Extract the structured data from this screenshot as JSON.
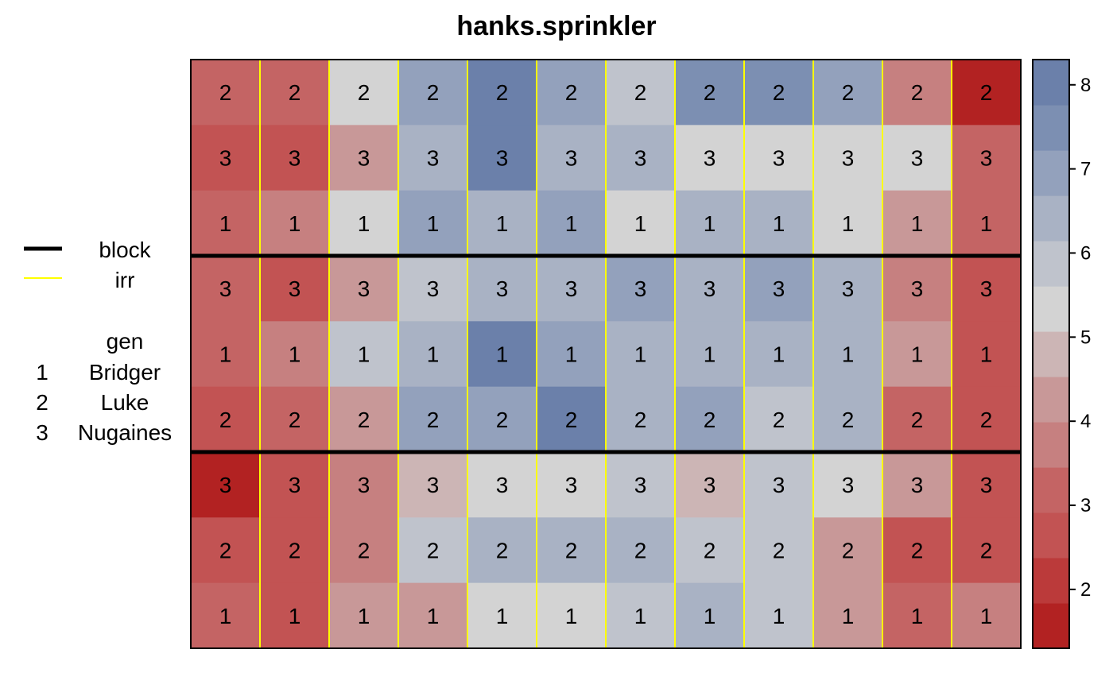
{
  "chart_data": {
    "type": "heatmap",
    "title": "hanks.sprinkler",
    "rows": 9,
    "cols": 12,
    "gen_labels": [
      [
        2,
        2,
        2,
        2,
        2,
        2,
        2,
        2,
        2,
        2,
        2,
        2
      ],
      [
        3,
        3,
        3,
        3,
        3,
        3,
        3,
        3,
        3,
        3,
        3,
        3
      ],
      [
        1,
        1,
        1,
        1,
        1,
        1,
        1,
        1,
        1,
        1,
        1,
        1
      ],
      [
        3,
        3,
        3,
        3,
        3,
        3,
        3,
        3,
        3,
        3,
        3,
        3
      ],
      [
        1,
        1,
        1,
        1,
        1,
        1,
        1,
        1,
        1,
        1,
        1,
        1
      ],
      [
        2,
        2,
        2,
        2,
        2,
        2,
        2,
        2,
        2,
        2,
        2,
        2
      ],
      [
        3,
        3,
        3,
        3,
        3,
        3,
        3,
        3,
        3,
        3,
        3,
        3
      ],
      [
        2,
        2,
        2,
        2,
        2,
        2,
        2,
        2,
        2,
        2,
        2,
        2
      ],
      [
        1,
        1,
        1,
        1,
        1,
        1,
        1,
        1,
        1,
        1,
        1,
        1
      ]
    ],
    "values": [
      [
        3.2,
        3.1,
        5.6,
        7.1,
        7.9,
        6.8,
        6.1,
        7.3,
        7.3,
        6.8,
        3.8,
        1.6
      ],
      [
        2.6,
        2.4,
        4.2,
        6.2,
        7.8,
        6.5,
        6.3,
        5.2,
        5.2,
        5.3,
        5.2,
        3.0
      ],
      [
        3.0,
        3.5,
        5.3,
        6.8,
        6.3,
        7.2,
        5.3,
        6.3,
        6.3,
        5.3,
        4.2,
        3.4
      ],
      [
        3.3,
        2.5,
        4.2,
        5.8,
        6.3,
        6.3,
        6.8,
        6.4,
        6.9,
        6.3,
        3.8,
        2.6
      ],
      [
        3.2,
        3.6,
        5.8,
        6.3,
        7.9,
        6.7,
        6.2,
        6.3,
        6.3,
        6.2,
        4.4,
        2.9
      ],
      [
        2.6,
        3.0,
        4.3,
        6.8,
        6.8,
        7.9,
        6.2,
        7.2,
        5.9,
        6.3,
        3.3,
        2.5
      ],
      [
        1.7,
        2.5,
        3.8,
        4.7,
        5.3,
        5.3,
        5.9,
        4.6,
        5.9,
        5.3,
        4.3,
        2.6
      ],
      [
        2.4,
        2.4,
        3.7,
        5.8,
        6.4,
        6.3,
        6.3,
        5.8,
        5.8,
        4.1,
        2.6,
        2.4
      ],
      [
        3.2,
        2.9,
        4.3,
        4.5,
        5.3,
        5.3,
        5.8,
        6.5,
        5.8,
        4.2,
        3.3,
        3.5
      ]
    ],
    "colorbar": {
      "min": 1.3,
      "max": 8.3,
      "ticks": [
        2,
        3,
        4,
        5,
        6,
        7,
        8
      ],
      "bands": [
        "#b22222",
        "#bb3a3a",
        "#c25353",
        "#c46464",
        "#c68080",
        "#c89898",
        "#ccb5b5",
        "#d3d3d3",
        "#bfc3cc",
        "#a9b2c4",
        "#93a1bc",
        "#7c8fb2",
        "#6b80aa"
      ]
    },
    "block_boundaries_after_row": [
      3,
      6
    ],
    "irr_boundaries_after_col": [
      1,
      2,
      3,
      4,
      5,
      6,
      7,
      8,
      9,
      10,
      11
    ],
    "legend": {
      "block_label": "block",
      "irr_label": "irr",
      "gen_heading": "gen",
      "gen_entries": [
        {
          "code": "1",
          "name": "Bridger"
        },
        {
          "code": "2",
          "name": "Luke"
        },
        {
          "code": "3",
          "name": "Nugaines"
        }
      ],
      "block_color": "#000000",
      "irr_color": "#ffff00"
    }
  }
}
